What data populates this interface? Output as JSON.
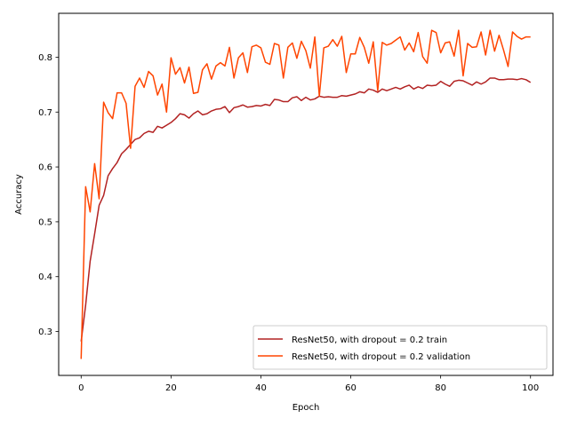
{
  "chart_data": {
    "type": "line",
    "title": "",
    "xlabel": "Epoch",
    "ylabel": "Accuracy",
    "xlim": [
      -5,
      105
    ],
    "ylim": [
      0.22,
      0.88
    ],
    "xticks": [
      0,
      20,
      40,
      60,
      80,
      100
    ],
    "yticks": [
      0.3,
      0.4,
      0.5,
      0.6,
      0.7,
      0.8
    ],
    "grid": false,
    "legend_position": "lower-right",
    "series": [
      {
        "name": "ResNet50, with dropout = 0.2 train",
        "color": "#b22222",
        "values": [
          0.282,
          0.348,
          0.428,
          0.478,
          0.53,
          0.548,
          0.584,
          0.597,
          0.608,
          0.624,
          0.632,
          0.641,
          0.65,
          0.653,
          0.661,
          0.665,
          0.663,
          0.674,
          0.671,
          0.676,
          0.681,
          0.688,
          0.697,
          0.695,
          0.689,
          0.697,
          0.702,
          0.695,
          0.697,
          0.702,
          0.705,
          0.706,
          0.71,
          0.699,
          0.708,
          0.71,
          0.713,
          0.709,
          0.71,
          0.712,
          0.711,
          0.714,
          0.712,
          0.723,
          0.722,
          0.719,
          0.719,
          0.726,
          0.728,
          0.721,
          0.727,
          0.722,
          0.724,
          0.729,
          0.727,
          0.728,
          0.727,
          0.727,
          0.73,
          0.729,
          0.731,
          0.733,
          0.737,
          0.735,
          0.742,
          0.74,
          0.736,
          0.742,
          0.739,
          0.742,
          0.745,
          0.742,
          0.746,
          0.749,
          0.742,
          0.746,
          0.743,
          0.749,
          0.748,
          0.749,
          0.756,
          0.751,
          0.747,
          0.756,
          0.758,
          0.757,
          0.753,
          0.749,
          0.755,
          0.751,
          0.755,
          0.762,
          0.762,
          0.759,
          0.759,
          0.76,
          0.76,
          0.759,
          0.761,
          0.759,
          0.754
        ]
      },
      {
        "name": "ResNet50, with dropout = 0.2 validation",
        "color": "#ff4500",
        "values": [
          0.25,
          0.564,
          0.518,
          0.606,
          0.542,
          0.718,
          0.699,
          0.688,
          0.735,
          0.735,
          0.716,
          0.634,
          0.747,
          0.762,
          0.745,
          0.774,
          0.766,
          0.731,
          0.751,
          0.7,
          0.799,
          0.769,
          0.781,
          0.753,
          0.782,
          0.734,
          0.736,
          0.777,
          0.788,
          0.76,
          0.784,
          0.79,
          0.784,
          0.818,
          0.762,
          0.799,
          0.808,
          0.772,
          0.819,
          0.822,
          0.817,
          0.791,
          0.787,
          0.825,
          0.822,
          0.762,
          0.818,
          0.826,
          0.798,
          0.829,
          0.812,
          0.78,
          0.837,
          0.729,
          0.817,
          0.82,
          0.832,
          0.82,
          0.838,
          0.772,
          0.806,
          0.806,
          0.836,
          0.818,
          0.789,
          0.828,
          0.739,
          0.827,
          0.822,
          0.825,
          0.831,
          0.837,
          0.813,
          0.826,
          0.81,
          0.845,
          0.801,
          0.789,
          0.849,
          0.845,
          0.808,
          0.826,
          0.828,
          0.802,
          0.849,
          0.766,
          0.825,
          0.818,
          0.819,
          0.846,
          0.804,
          0.849,
          0.811,
          0.84,
          0.813,
          0.783,
          0.846,
          0.838,
          0.833,
          0.837,
          0.837
        ]
      }
    ]
  }
}
